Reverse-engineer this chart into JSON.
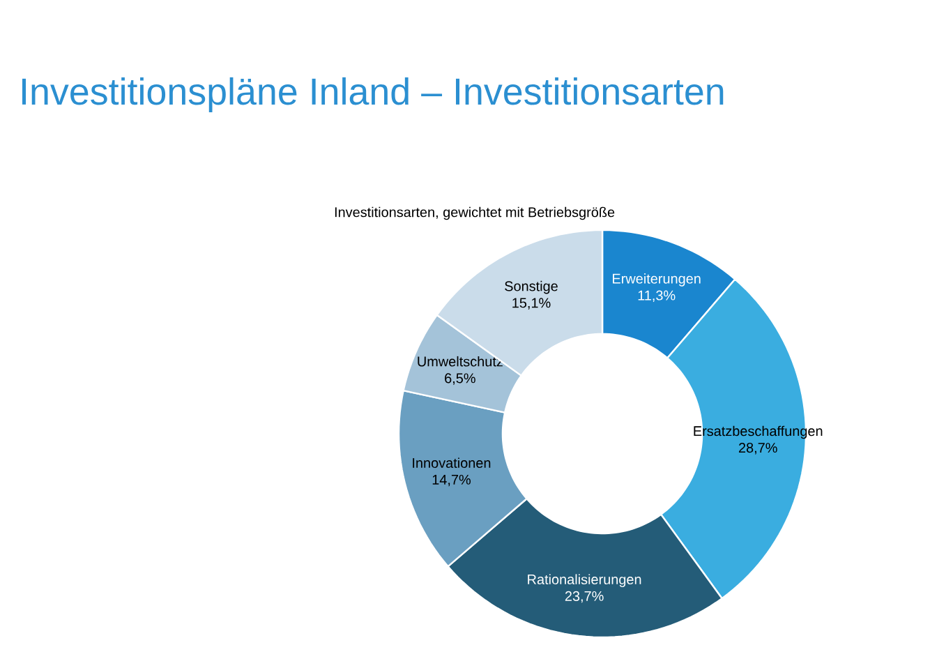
{
  "chart_data": {
    "type": "donut",
    "title": "Investitionspläne Inland – Investitionsarten",
    "subtitle": "Investitionsarten, gewichtet mit Betriebsgröße",
    "categories": [
      "Erweiterungen",
      "Ersatzbeschaffungen",
      "Rationalisierungen",
      "Innovationen",
      "Umweltschutz",
      "Sonstige"
    ],
    "values": [
      11.3,
      28.7,
      23.7,
      14.7,
      6.5,
      15.1
    ],
    "colors": [
      "#1a86cf",
      "#3aade0",
      "#245c78",
      "#6a9fc1",
      "#a4c3d9",
      "#cadcea"
    ],
    "value_labels": [
      "11,3%",
      "28,7%",
      "23,7%",
      "14,7%",
      "6,5%",
      "15,1%"
    ]
  }
}
